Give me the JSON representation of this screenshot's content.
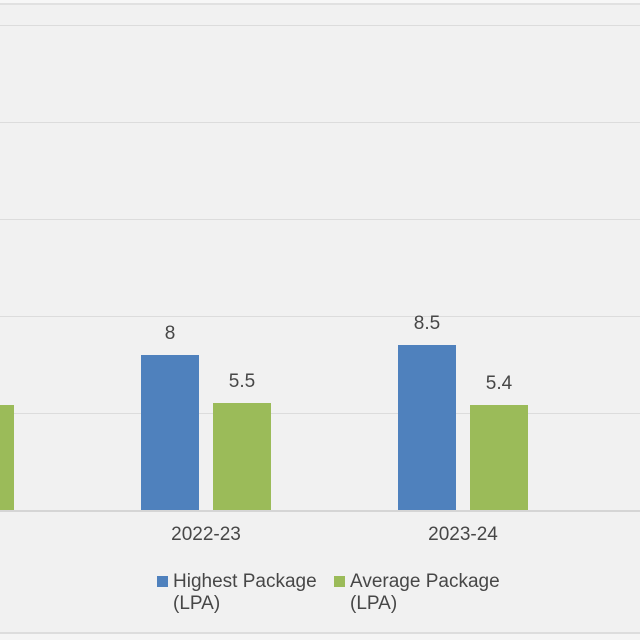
{
  "chart_data": {
    "type": "bar",
    "title": "",
    "categories": [
      "2022-23",
      "2023-24"
    ],
    "series": [
      {
        "name": "Highest Package (LPA)",
        "color": "#4f81bd",
        "values": [
          8,
          8.5
        ],
        "labels": [
          "8",
          "8.5"
        ]
      },
      {
        "name": "Average Package (LPA)",
        "color": "#9bbb59",
        "values": [
          5.5,
          5.4
        ],
        "labels": [
          "5.5",
          "5.4"
        ]
      }
    ],
    "clipped_left_bar": {
      "series": "Average Package (LPA)",
      "approx_value": 5.4,
      "label_visible": false
    },
    "axis": {
      "y_gridline_values": [
        5,
        10,
        15,
        20,
        25
      ],
      "ylim_visible": [
        0,
        26
      ],
      "y_axis_labels_visible": false,
      "x_axis_labels": [
        "2022-23",
        "2023-24"
      ]
    },
    "grid": true,
    "data_labels_shown": true,
    "legend": {
      "position": "bottom",
      "entries": [
        {
          "label": "Highest Package (LPA)",
          "color": "#4f81bd"
        },
        {
          "label": "Average Package (LPA)",
          "color": "#9bbb59"
        }
      ]
    }
  },
  "colors": {
    "background": "#f1f1f1",
    "gridline": "#dcdcdc",
    "axis_line": "#d5d5d5",
    "text": "#474747",
    "highest_package": "#4f81bd",
    "average_package": "#9bbb59"
  }
}
